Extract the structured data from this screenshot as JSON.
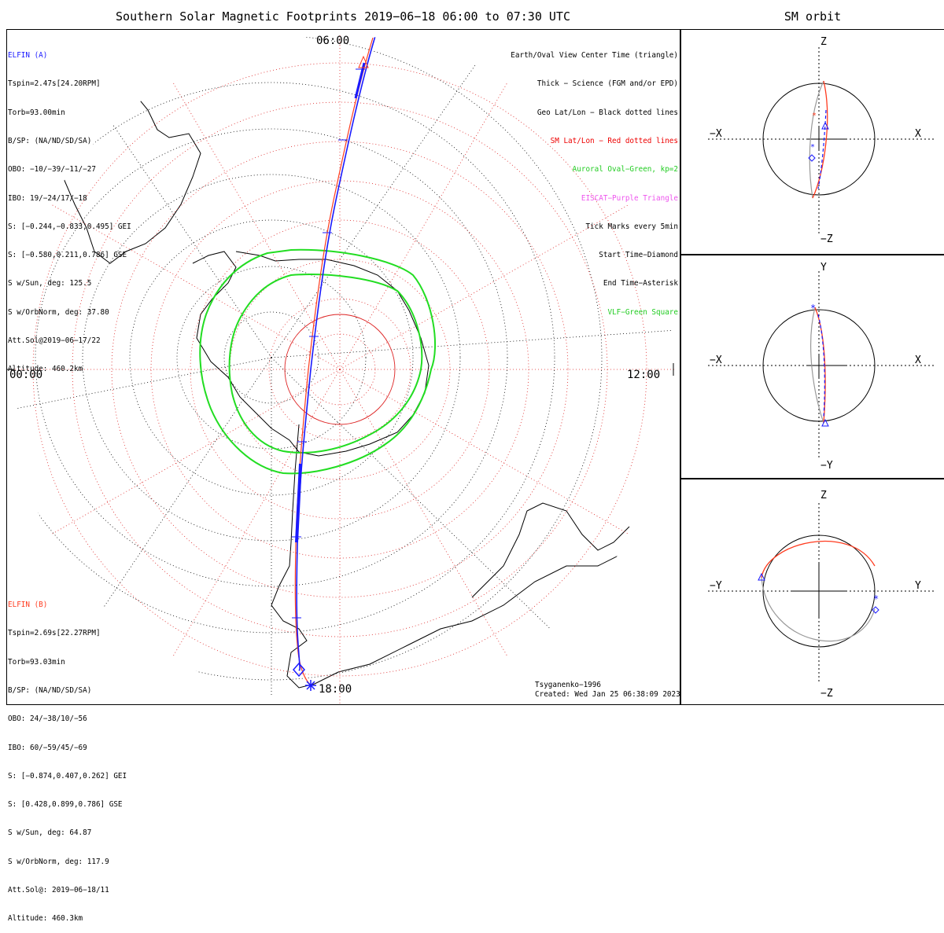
{
  "title": "Southern Solar Magnetic Footprints 2019−06−18 06:00 to 07:30 UTC",
  "orbit_title": "SM orbit",
  "colors": {
    "elfin_a": "#1a1aff",
    "elfin_b": "#ff3b1f",
    "oval": "#22dd22",
    "eiscat": "#ee55ee",
    "vlf": "#22dd22",
    "sm_grid": "#dd2222",
    "geo_grid": "#000000"
  },
  "elfin_a": {
    "name": "ELFIN (A)",
    "lines": [
      "Tspin=2.47s[24.20RPM]",
      "Torb=93.00min",
      "B/SP: (NA/ND/SD/SA)",
      "OBO: −10/−39/−11/−27",
      "IBO: 19/−24/17/−18",
      "S: [−0.244,−0.833,0.495] GEI",
      "S: [−0.580,0.211,0.786] GSE",
      "S w/Sun, deg: 125.5",
      "S w/OrbNorm, deg: 37.80",
      "Att.Sol@2019−06−17/22",
      "Altitude: 460.2km"
    ]
  },
  "elfin_b": {
    "name": "ELFIN (B)",
    "lines": [
      "Tspin=2.69s[22.27RPM]",
      "Torb=93.03min",
      "B/SP: (NA/ND/SD/SA)",
      "OBO: 24/−38/10/−56",
      "IBO: 60/−59/45/−69",
      "S: [−0.874,0.407,0.262] GEI",
      "S: [0.428,0.899,0.786] GSE",
      "S w/Sun, deg: 64.87",
      "S w/OrbNorm, deg: 117.9",
      "Att.Sol@: 2019−06−18/11",
      "Altitude: 460.3km"
    ]
  },
  "legend": [
    {
      "text": "Earth/Oval View Center Time (triangle)",
      "color": "#000000"
    },
    {
      "text": "Thick − Science (FGM and/or EPD)",
      "color": "#000000"
    },
    {
      "text": "Geo Lat/Lon − Black dotted lines",
      "color": "#000000"
    },
    {
      "text": "SM Lat/Lon − Red dotted lines",
      "color": "#ee0000"
    },
    {
      "text": "Auroral Oval−Green, kp=2",
      "color": "#22cc22"
    },
    {
      "text": "EISCAT−Purple Triangle",
      "color": "#ee55ee"
    },
    {
      "text": "Tick Marks every 5min",
      "color": "#000000"
    },
    {
      "text": "Start Time−Diamond",
      "color": "#000000"
    },
    {
      "text": "End Time−Asterisk",
      "color": "#000000"
    },
    {
      "text": "VLF−Green Square",
      "color": "#22cc22"
    }
  ],
  "mlt_labels": {
    "top": "06:00",
    "left": "00:00",
    "right": "12:00",
    "bottom": "18:00"
  },
  "footer": {
    "model": "Tsyganenko−1996",
    "created": "Created: Wed Jan 25 06:38:09 2023"
  },
  "orbit_panels": [
    {
      "top": "Z",
      "bottom": "−Z",
      "left": "−X",
      "right": "X"
    },
    {
      "top": "Y",
      "bottom": "−Y",
      "left": "−X",
      "right": "X"
    },
    {
      "top": "Z",
      "bottom": "−Z",
      "left": "−Y",
      "right": "Y"
    }
  ],
  "chart_data": {
    "type": "polar-map",
    "projection": "southern hemisphere, solar magnetic coordinates",
    "time_range": [
      "2019-06-18 06:00",
      "2019-06-18 07:30"
    ],
    "auroral_oval_kp": 2,
    "mlt_ticks": [
      "00:00",
      "06:00",
      "12:00",
      "18:00"
    ],
    "tick_interval_min": 5
  }
}
